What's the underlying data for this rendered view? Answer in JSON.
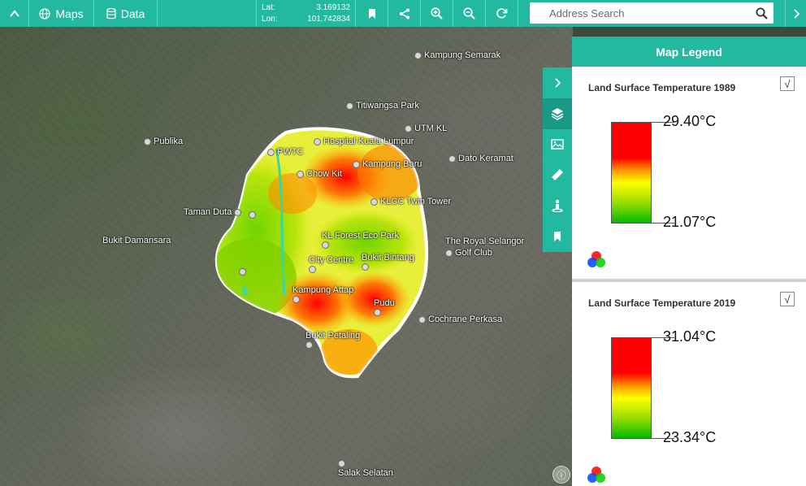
{
  "toolbar": {
    "maps_label": "Maps",
    "data_label": "Data",
    "lat_label": "Lat:",
    "lat_value": "3.169132",
    "lon_label": "Lon:",
    "lon_value": "101.742834",
    "search_placeholder": "Address Search"
  },
  "map": {
    "places": [
      {
        "name": "Kampung Semarak"
      },
      {
        "name": "Titiwangsa Park"
      },
      {
        "name": "UTM KL"
      },
      {
        "name": "Publika"
      },
      {
        "name": "Hospital Kuala Lumpur"
      },
      {
        "name": "PWTC"
      },
      {
        "name": "Dato Keramat"
      },
      {
        "name": "Kampung Baru"
      },
      {
        "name": "Chow Kit"
      },
      {
        "name": "KLCC Twin Tower"
      },
      {
        "name": "Taman Duta"
      },
      {
        "name": "KL Forest Eco Park"
      },
      {
        "name": "Bukit Damansara"
      },
      {
        "name": "The Royal Selangor"
      },
      {
        "name": "Golf Club"
      },
      {
        "name": "City Centre"
      },
      {
        "name": "Bukit Bintang"
      },
      {
        "name": "Kampung Attap"
      },
      {
        "name": "Pudu"
      },
      {
        "name": "Cochrane Perkasa"
      },
      {
        "name": "Bukit Petaling"
      },
      {
        "name": "Salak Selatan"
      }
    ]
  },
  "legend": {
    "title": "Map Legend",
    "items": [
      {
        "title": "Land Surface Temperature 1989",
        "max": "29.40°C",
        "min": "21.07°C",
        "checked": "√"
      },
      {
        "title": "Land Surface Temperature 2019",
        "max": "31.04°C",
        "min": "23.34°C",
        "checked": "√"
      }
    ]
  },
  "colors": {
    "accent": "#22b9a0",
    "heat_high": "#ff0000",
    "heat_mid": "#ffff00",
    "heat_low": "#00bb00"
  }
}
